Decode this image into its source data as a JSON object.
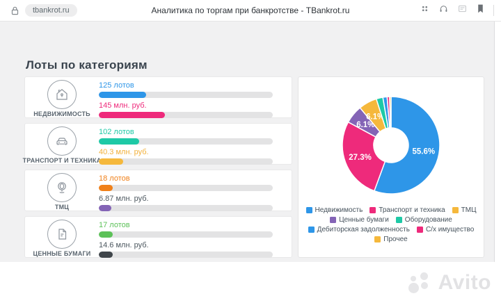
{
  "browser": {
    "lock_icon": "lock-icon",
    "tab_url": "tbankrot.ru",
    "page_title": "Аналитика по торгам при банкротстве - TBankrot.ru",
    "toolbar_icons": [
      "apps-grid-icon",
      "headphones-icon",
      "collections-icon",
      "bookmark-icon"
    ]
  },
  "page": {
    "heading": "Лоты по категориям"
  },
  "categories": [
    {
      "label": "НЕДВИЖИМОСТЬ",
      "icon": "house-icon",
      "lots": {
        "text": "125 лотов",
        "color": "#2e96e8",
        "bar_color": "#2e96e8",
        "bar_percent": 27
      },
      "value": {
        "text": "145 млн. руб.",
        "color": "#ee2a7b",
        "bar_color": "#ee2a7b",
        "bar_percent": 38
      }
    },
    {
      "label": "ТРАНСПОРТ И ТЕХНИКА",
      "icon": "car-icon",
      "lots": {
        "text": "102 лотов",
        "color": "#1ec9a6",
        "bar_color": "#1ec9a6",
        "bar_percent": 23
      },
      "value": {
        "text": "40.3 млн. руб.",
        "color": "#f2b13c",
        "bar_color": "#f5b83c",
        "bar_percent": 14
      }
    },
    {
      "label": "ТМЦ",
      "icon": "goods-icon",
      "lots": {
        "text": "18 лотов",
        "color": "#f08019",
        "bar_color": "#f08019",
        "bar_percent": 8
      },
      "value": {
        "text": "6.87 млн. руб.",
        "color": "#4c575f",
        "bar_color": "#8464b6",
        "bar_percent": 7
      }
    },
    {
      "label": "ЦЕННЫЕ БУМАГИ",
      "icon": "document-icon",
      "lots": {
        "text": "17 лотов",
        "color": "#5cc158",
        "bar_color": "#5cc158",
        "bar_percent": 8
      },
      "value": {
        "text": "14.6 млн. руб.",
        "color": "#4c575f",
        "bar_color": "#3f454a",
        "bar_percent": 8
      }
    }
  ],
  "chart_data": {
    "type": "pie",
    "title": "",
    "legend_position": "bottom",
    "slices": [
      {
        "label": "Недвижимость",
        "percent": 55.6,
        "color": "#2e96e8",
        "label_visible": true
      },
      {
        "label": "Транспорт и техника",
        "percent": 27.3,
        "color": "#ee2a7b",
        "label_visible": true
      },
      {
        "label": "ТМЦ",
        "percent": 6.1,
        "color": "#f5b83c",
        "label_visible": true
      },
      {
        "label": "Ценные бумаги",
        "percent": 6.1,
        "color": "#8464b6",
        "label_visible": true
      },
      {
        "label": "Оборудование",
        "percent": 2.2,
        "color": "#1ec9a6",
        "label_visible": false
      },
      {
        "label": "Дебиторская задолженность",
        "percent": 1.4,
        "color": "#2e96e8",
        "label_visible": false
      },
      {
        "label": "С/х имущество",
        "percent": 0.8,
        "color": "#ee2a7b",
        "label_visible": false
      },
      {
        "label": "Прочее",
        "percent": 0.5,
        "color": "#f5b83c",
        "label_visible": false
      }
    ],
    "draw_order": [
      0,
      1,
      3,
      2,
      4,
      5,
      6,
      7
    ]
  },
  "watermark": {
    "text": "Avito"
  }
}
